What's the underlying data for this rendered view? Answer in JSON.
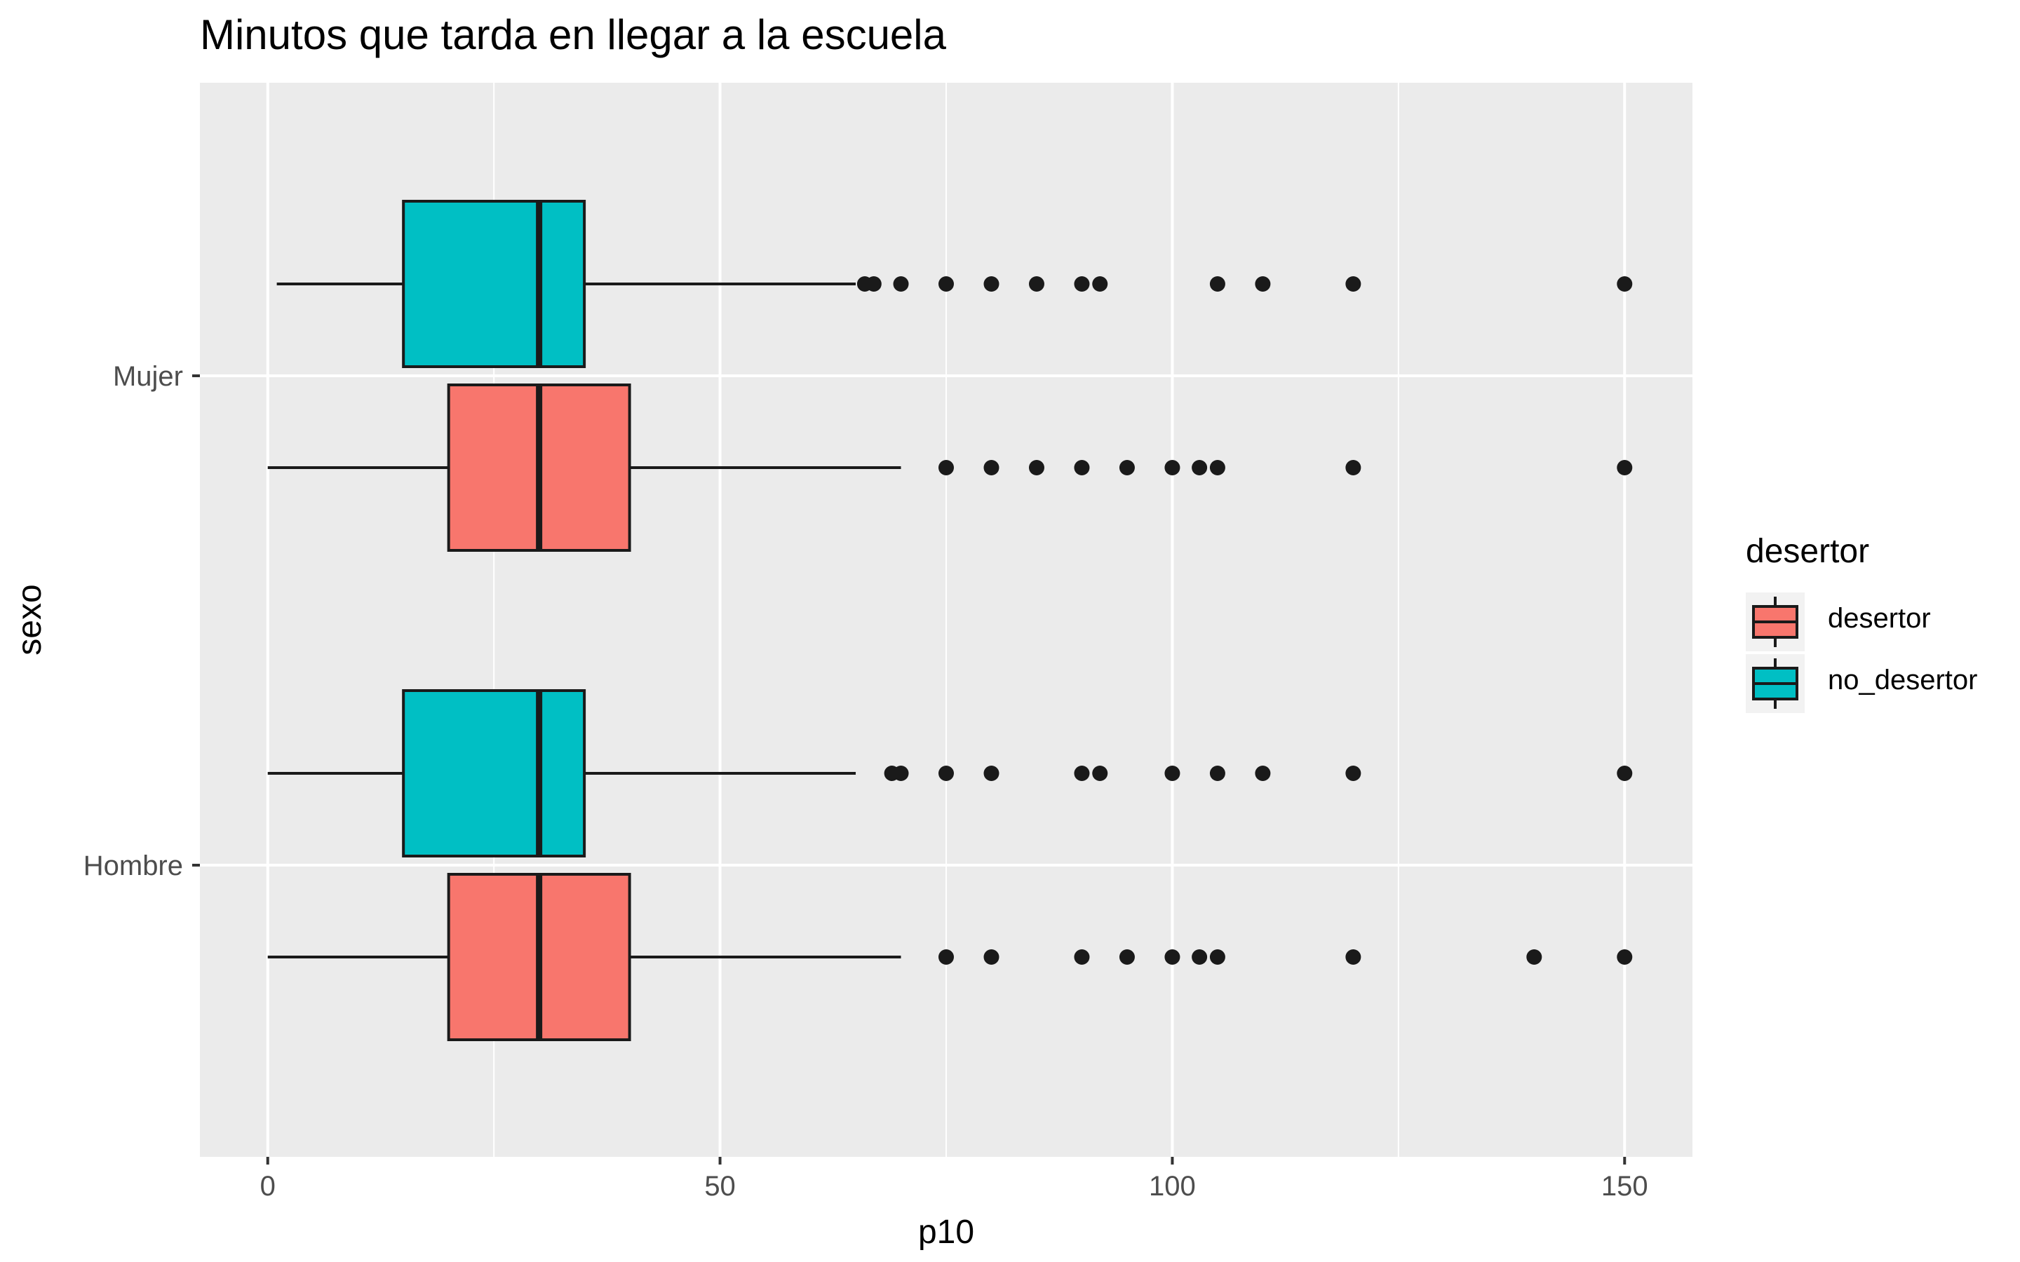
{
  "chart_data": {
    "type": "boxplot",
    "orientation": "horizontal",
    "title": "Minutos que tarda en llegar a la escuela",
    "xlabel": "p10",
    "ylabel": "sexo",
    "xlim": [
      -7.5,
      157.5
    ],
    "x_ticks": [
      0,
      50,
      100,
      150
    ],
    "x_tick_labels": [
      "0",
      "50",
      "100",
      "150"
    ],
    "categories": [
      "Mujer",
      "Hombre"
    ],
    "grid": true,
    "legend": {
      "title": "desertor",
      "position": "right",
      "entries": [
        {
          "label": "desertor",
          "color": "#F8766D"
        },
        {
          "label": "no_desertor",
          "color": "#00BFC4"
        }
      ]
    },
    "series": [
      {
        "name": "desertor",
        "color": "#F8766D",
        "boxes": [
          {
            "category": "Mujer",
            "whisker_low": 0,
            "q1": 20,
            "median": 30,
            "q3": 40,
            "whisker_high": 70,
            "outliers": [
              75,
              80,
              85,
              90,
              95,
              100,
              103,
              105,
              120,
              150
            ]
          },
          {
            "category": "Hombre",
            "whisker_low": 0,
            "q1": 20,
            "median": 30,
            "q3": 40,
            "whisker_high": 70,
            "outliers": [
              75,
              80,
              90,
              95,
              100,
              103,
              105,
              120,
              140,
              150
            ]
          }
        ]
      },
      {
        "name": "no_desertor",
        "color": "#00BFC4",
        "boxes": [
          {
            "category": "Mujer",
            "whisker_low": 1,
            "q1": 15,
            "median": 30,
            "q3": 35,
            "whisker_high": 65,
            "outliers": [
              66,
              67,
              70,
              75,
              80,
              85,
              90,
              92,
              105,
              110,
              120,
              150
            ]
          },
          {
            "category": "Hombre",
            "whisker_low": 0,
            "q1": 15,
            "median": 30,
            "q3": 35,
            "whisker_high": 65,
            "outliers": [
              69,
              70,
              75,
              80,
              90,
              92,
              100,
              105,
              110,
              120,
              150
            ]
          }
        ]
      }
    ]
  }
}
